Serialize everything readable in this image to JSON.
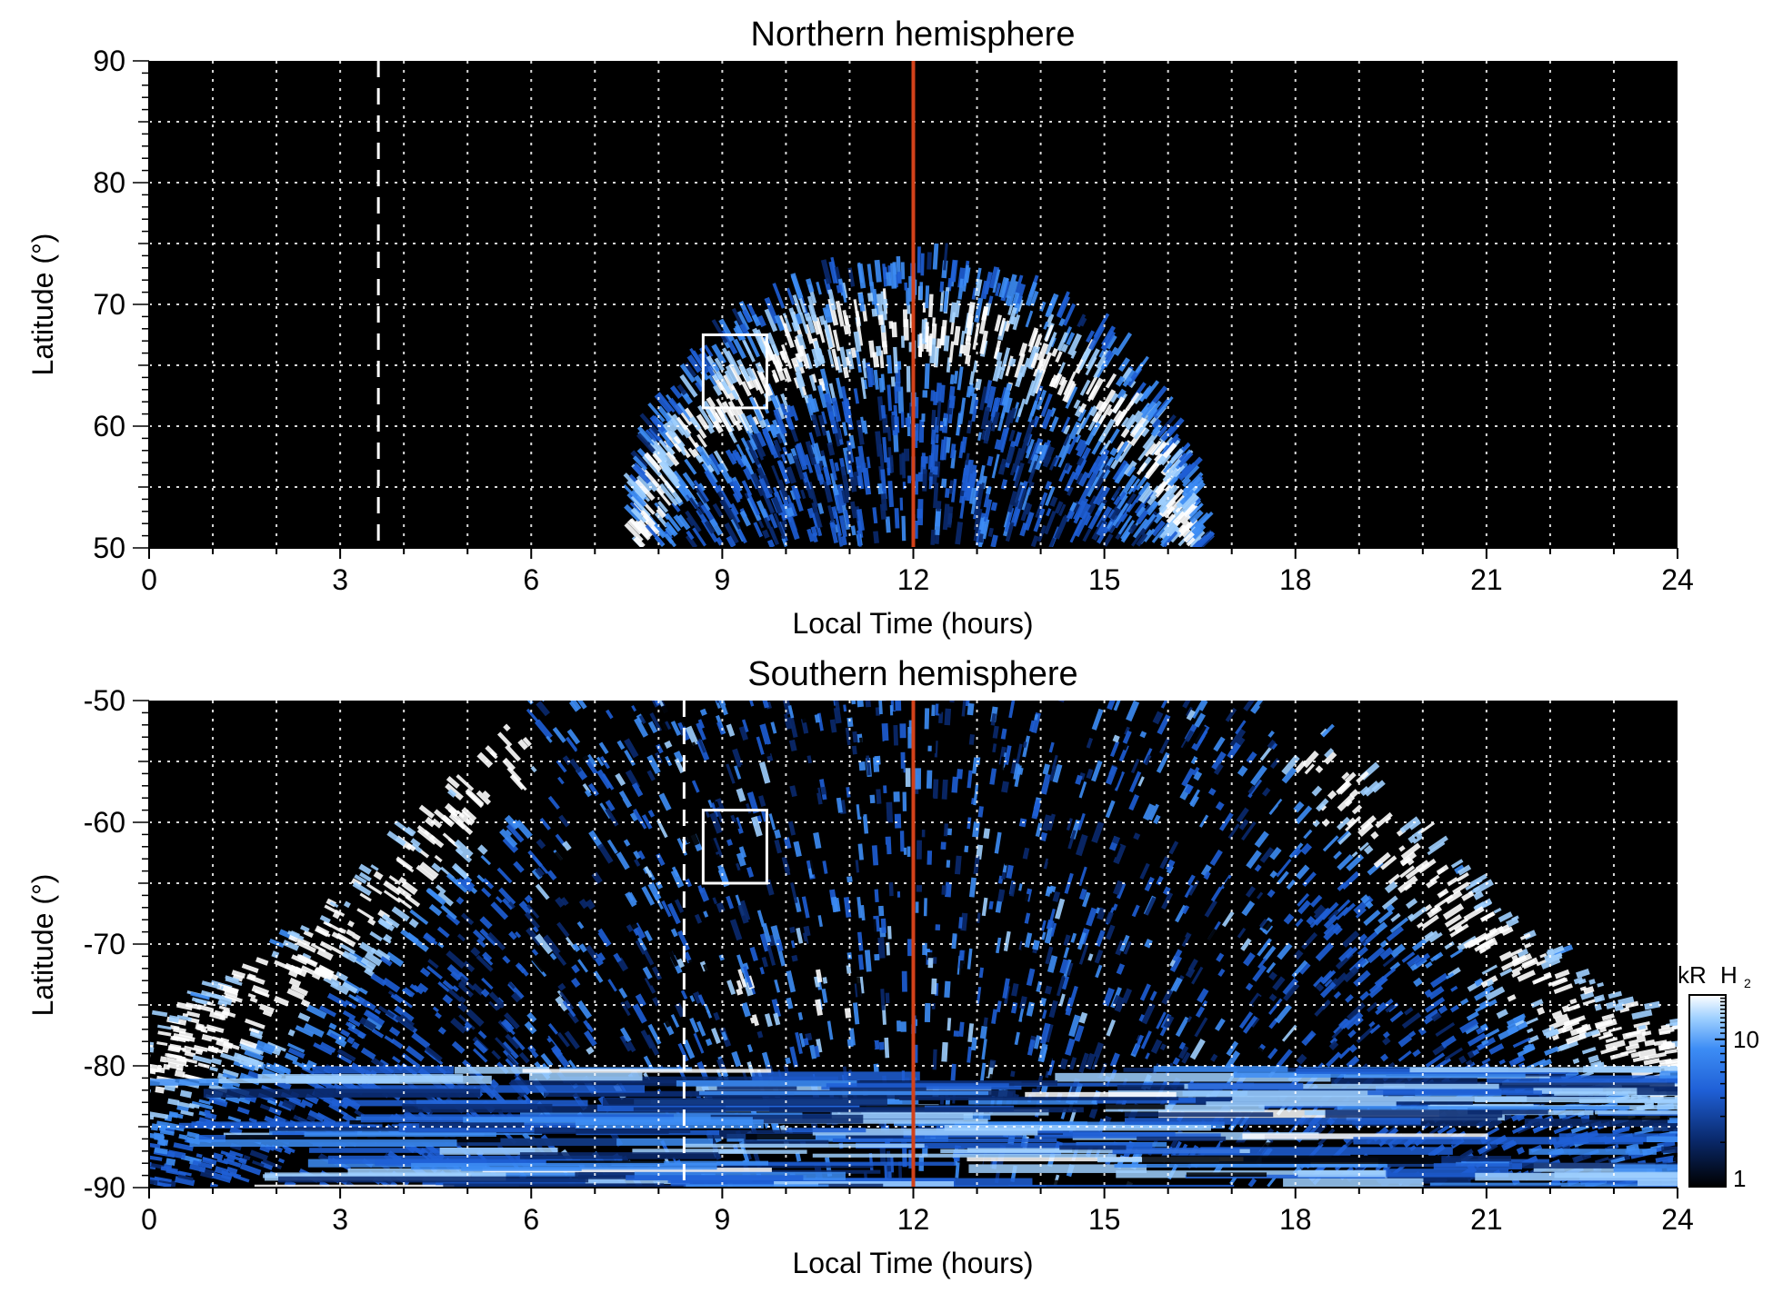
{
  "chart_data": [
    {
      "type": "heatmap",
      "title": "Northern hemisphere",
      "xlabel": "Local Time (hours)",
      "ylabel": "Latitude (°)",
      "xlim": [
        0,
        24
      ],
      "ylim": [
        50,
        90
      ],
      "xticks": [
        0,
        3,
        6,
        9,
        12,
        15,
        18,
        21,
        24
      ],
      "yticks": [
        50,
        60,
        70,
        80,
        90
      ],
      "grid": true,
      "background": "#000000",
      "colormap": [
        "#000000",
        "#0a2a6e",
        "#1f5fd6",
        "#3d8df5",
        "#9fd0ff",
        "#ffffff"
      ],
      "emission_region": {
        "lt_range": [
          7.7,
          16.5
        ],
        "peak_lt": 12,
        "peak_lat": 73,
        "edge_lat": 50
      },
      "vertical_lines": [
        {
          "x": 3.6,
          "style": "dashed",
          "color": "#ffffff"
        },
        {
          "x": 12,
          "style": "solid",
          "color": "#d2421a"
        }
      ],
      "box": {
        "x": [
          8.7,
          9.7
        ],
        "y": [
          61.5,
          67.5
        ],
        "color": "#ffffff"
      }
    },
    {
      "type": "heatmap",
      "title": "Southern hemisphere",
      "xlabel": "Local Time (hours)",
      "ylabel": "Latitude (°)",
      "xlim": [
        0,
        24
      ],
      "ylim": [
        -90,
        -50
      ],
      "xticks": [
        0,
        3,
        6,
        9,
        12,
        15,
        18,
        21,
        24
      ],
      "yticks": [
        -90,
        -80,
        -70,
        -60,
        -50
      ],
      "grid": true,
      "background": "#000000",
      "colormap": [
        "#000000",
        "#0a2a6e",
        "#1f5fd6",
        "#3d8df5",
        "#9fd0ff",
        "#ffffff"
      ],
      "emission_region": {
        "lt_range": [
          0,
          24
        ],
        "edge_lat_at_lt0": -76,
        "edge_lat_at_lt6": -50,
        "edge_lat_at_lt18": -50,
        "edge_lat_at_lt24": -76
      },
      "vertical_lines": [
        {
          "x": 8.4,
          "style": "dashed",
          "color": "#ffffff"
        },
        {
          "x": 12,
          "style": "solid",
          "color": "#d2421a"
        }
      ],
      "box": {
        "x": [
          8.7,
          9.7
        ],
        "y": [
          -65,
          -59
        ],
        "color": "#ffffff"
      },
      "colorbar": {
        "label": "kR",
        "label_species": "H",
        "label_subscript": "2",
        "scale": "log",
        "range": [
          1,
          20
        ],
        "ticks": [
          1,
          10
        ],
        "tick_labels": [
          "1",
          "10"
        ]
      }
    }
  ]
}
